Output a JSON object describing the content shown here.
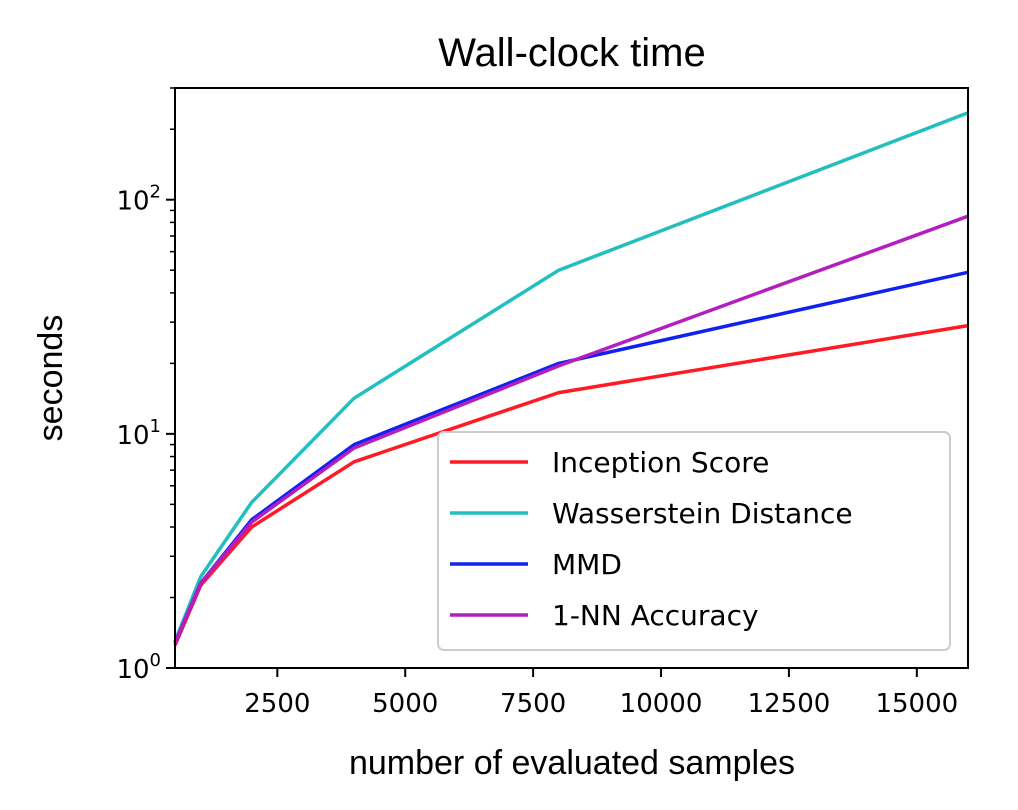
{
  "chart_data": {
    "type": "line",
    "title": "Wall-clock time",
    "xlabel": "number of evaluated samples",
    "ylabel": "seconds",
    "yscale": "log",
    "xlim": [
      500,
      16000
    ],
    "ylim": [
      1,
      300
    ],
    "grid": false,
    "legend_position": "lower-right",
    "x_ticks": [
      {
        "value": 2500,
        "label": "2500"
      },
      {
        "value": 5000,
        "label": "5000"
      },
      {
        "value": 7500,
        "label": "7500"
      },
      {
        "value": 10000,
        "label": "10000"
      },
      {
        "value": 12500,
        "label": "12500"
      },
      {
        "value": 15000,
        "label": "15000"
      }
    ],
    "y_ticks": [
      {
        "value": 1,
        "base": "10",
        "exp": "0"
      },
      {
        "value": 10,
        "base": "10",
        "exp": "1"
      },
      {
        "value": 100,
        "base": "10",
        "exp": "2"
      }
    ],
    "x": [
      500,
      1000,
      2000,
      4000,
      8000,
      16000
    ],
    "series": [
      {
        "name": "Inception Score",
        "color": "#ff1a26",
        "values": [
          1.25,
          2.25,
          4.0,
          7.6,
          15.0,
          29.0
        ]
      },
      {
        "name": "Wasserstein Distance",
        "color": "#22bfbf",
        "values": [
          1.3,
          2.45,
          5.1,
          14.2,
          50.0,
          235.0
        ]
      },
      {
        "name": "MMD",
        "color": "#1122ee",
        "values": [
          1.28,
          2.3,
          4.3,
          9.0,
          20.0,
          49.0
        ]
      },
      {
        "name": "1-NN Accuracy",
        "color": "#b31fbf",
        "values": [
          1.28,
          2.3,
          4.2,
          8.7,
          19.5,
          85.0
        ]
      }
    ]
  }
}
